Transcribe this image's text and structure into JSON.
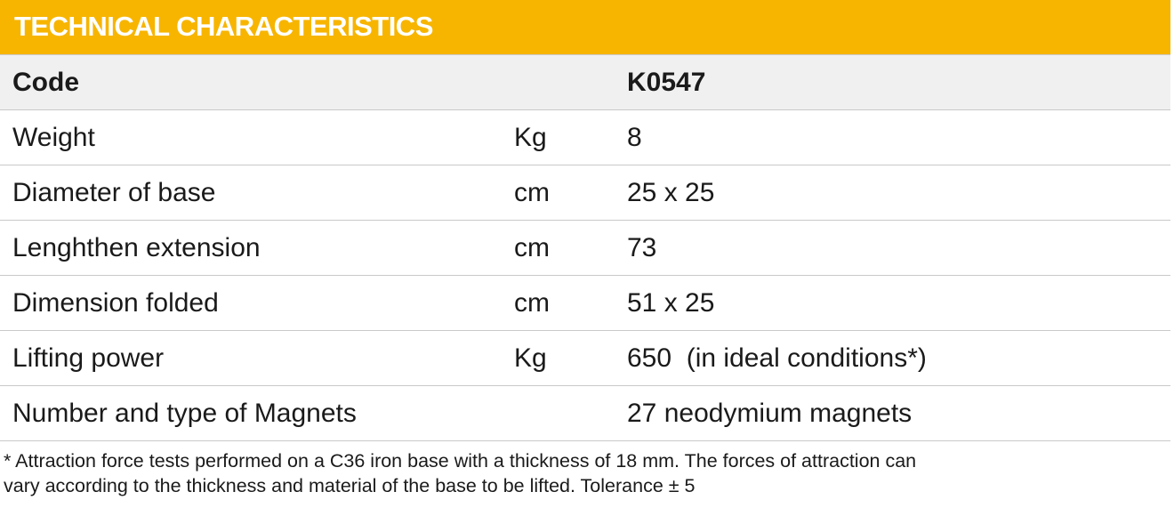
{
  "header": {
    "title": "TECHNICAL CHARACTERISTICS"
  },
  "table": {
    "code_label": "Code",
    "code_value": "K0547",
    "rows": [
      {
        "label": "Weight",
        "unit": "Kg",
        "value": "8"
      },
      {
        "label": "Diameter of base",
        "unit": "cm",
        "value": "25 x 25"
      },
      {
        "label": "Lenghthen extension",
        "unit": "cm",
        "value": "73"
      },
      {
        "label": "Dimension folded",
        "unit": "cm",
        "value": "51 x 25"
      },
      {
        "label": "Lifting power",
        "unit": "Kg",
        "value": "650  (in ideal conditions*)"
      },
      {
        "label": "Number and type of Magnets",
        "value": "27 neodymium magnets"
      }
    ]
  },
  "footnote": {
    "lines": [
      "* Attraction force tests performed on a C36 iron base with a thickness of 18 mm. The forces of attraction can",
      "vary according to the thickness and material of the base to be lifted. Tolerance ± 5"
    ]
  }
}
